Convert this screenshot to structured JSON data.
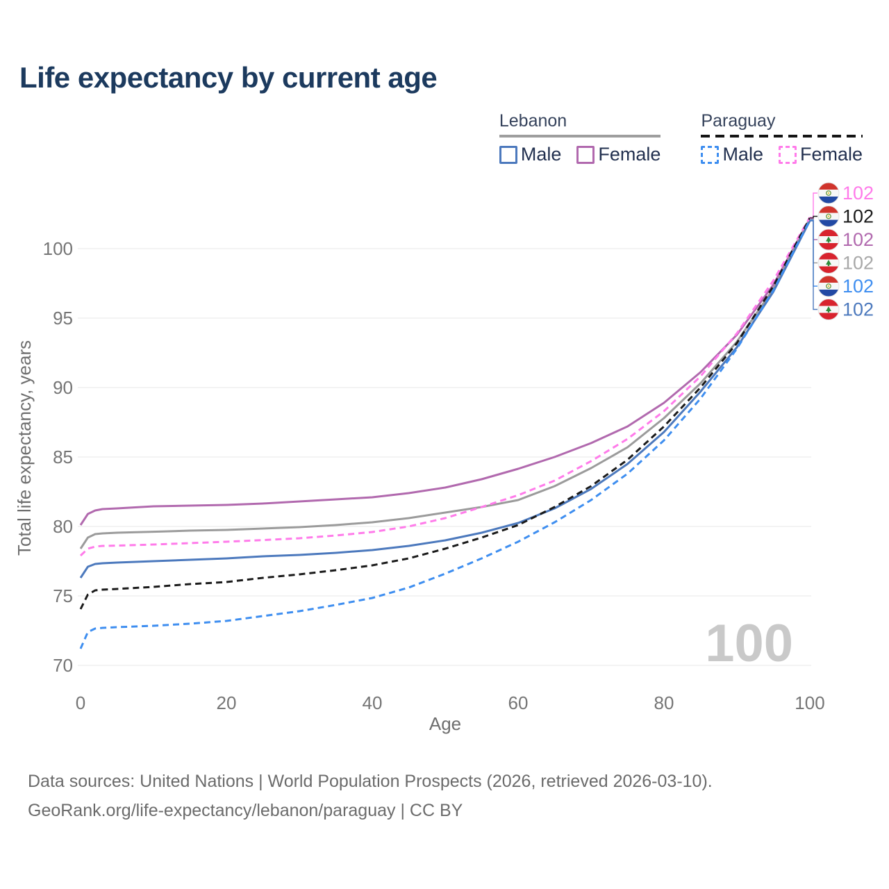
{
  "title": "Life expectancy by current age",
  "legend": {
    "groups": [
      {
        "country": "Lebanon",
        "line_style": "solid",
        "underline_color": "#9e9e9e",
        "entries": [
          {
            "label": "Male",
            "color": "#4c79bd"
          },
          {
            "label": "Female",
            "color": "#b169ae"
          }
        ]
      },
      {
        "country": "Paraguay",
        "line_style": "dashed",
        "underline_color": "#141414",
        "entries": [
          {
            "label": "Male",
            "color": "#3e8ef0"
          },
          {
            "label": "Female",
            "color": "#ff7bea"
          }
        ]
      }
    ]
  },
  "chart_data": {
    "type": "line",
    "title": "Life expectancy by current age",
    "xlabel": "Age",
    "ylabel": "Total life expectancy, years",
    "x_ticks": [
      0,
      20,
      40,
      60,
      80,
      100
    ],
    "y_ticks": [
      70,
      75,
      80,
      85,
      90,
      95,
      100
    ],
    "xlim": [
      0,
      100
    ],
    "ylim": [
      69.5,
      103
    ],
    "grid": "horizontal-only",
    "legend_position": "top-right",
    "age_watermark": "100",
    "series": [
      {
        "name": "Paraguay Female",
        "country": "paraguay",
        "sex": "female",
        "style": "dashed",
        "color": "#ff7bea",
        "label_color": "#ff7bea",
        "end_label": "102",
        "points": [
          [
            0,
            77.9
          ],
          [
            1,
            78.4
          ],
          [
            2,
            78.55
          ],
          [
            3,
            78.6
          ],
          [
            5,
            78.62
          ],
          [
            10,
            78.7
          ],
          [
            15,
            78.8
          ],
          [
            20,
            78.9
          ],
          [
            25,
            79.02
          ],
          [
            30,
            79.15
          ],
          [
            35,
            79.35
          ],
          [
            40,
            79.6
          ],
          [
            45,
            80.0
          ],
          [
            50,
            80.6
          ],
          [
            55,
            81.4
          ],
          [
            60,
            82.25
          ],
          [
            65,
            83.3
          ],
          [
            70,
            84.7
          ],
          [
            75,
            86.3
          ],
          [
            80,
            88.3
          ],
          [
            85,
            90.8
          ],
          [
            90,
            93.9
          ],
          [
            95,
            97.7
          ],
          [
            100,
            102.25
          ]
        ]
      },
      {
        "name": "Paraguay",
        "country": "paraguay",
        "sex": "both",
        "style": "dashed",
        "color": "#1a1a1a",
        "label_color": "#1a1a1a",
        "end_label": "102",
        "points": [
          [
            0,
            74.05
          ],
          [
            1,
            75.1
          ],
          [
            2,
            75.4
          ],
          [
            3,
            75.45
          ],
          [
            5,
            75.5
          ],
          [
            10,
            75.65
          ],
          [
            15,
            75.85
          ],
          [
            20,
            76.0
          ],
          [
            25,
            76.3
          ],
          [
            30,
            76.55
          ],
          [
            35,
            76.85
          ],
          [
            40,
            77.2
          ],
          [
            45,
            77.7
          ],
          [
            50,
            78.4
          ],
          [
            55,
            79.2
          ],
          [
            60,
            80.1
          ],
          [
            65,
            81.4
          ],
          [
            70,
            82.9
          ],
          [
            75,
            84.8
          ],
          [
            80,
            87.2
          ],
          [
            85,
            90.0
          ],
          [
            90,
            93.2
          ],
          [
            95,
            97.3
          ],
          [
            100,
            102.2
          ]
        ]
      },
      {
        "name": "Lebanon Female",
        "country": "lebanon",
        "sex": "female",
        "style": "solid",
        "color": "#b169ae",
        "label_color": "#b169ae",
        "end_label": "102",
        "points": [
          [
            0,
            80.1
          ],
          [
            1,
            80.9
          ],
          [
            2,
            81.15
          ],
          [
            3,
            81.25
          ],
          [
            5,
            81.3
          ],
          [
            10,
            81.45
          ],
          [
            15,
            81.5
          ],
          [
            20,
            81.55
          ],
          [
            25,
            81.65
          ],
          [
            30,
            81.8
          ],
          [
            35,
            81.95
          ],
          [
            40,
            82.1
          ],
          [
            45,
            82.4
          ],
          [
            50,
            82.8
          ],
          [
            55,
            83.4
          ],
          [
            60,
            84.15
          ],
          [
            65,
            85.0
          ],
          [
            70,
            86.0
          ],
          [
            75,
            87.2
          ],
          [
            80,
            88.9
          ],
          [
            85,
            91.1
          ],
          [
            90,
            93.8
          ],
          [
            95,
            97.4
          ],
          [
            100,
            102.15
          ]
        ]
      },
      {
        "name": "Lebanon",
        "country": "lebanon",
        "sex": "both",
        "style": "solid",
        "color": "#9b9b9b",
        "label_color": "#a8a8a8",
        "end_label": "102",
        "points": [
          [
            0,
            78.4
          ],
          [
            1,
            79.2
          ],
          [
            2,
            79.45
          ],
          [
            3,
            79.5
          ],
          [
            5,
            79.55
          ],
          [
            10,
            79.62
          ],
          [
            15,
            79.7
          ],
          [
            20,
            79.75
          ],
          [
            25,
            79.85
          ],
          [
            30,
            79.95
          ],
          [
            35,
            80.1
          ],
          [
            40,
            80.3
          ],
          [
            45,
            80.6
          ],
          [
            50,
            81.0
          ],
          [
            55,
            81.4
          ],
          [
            60,
            81.9
          ],
          [
            65,
            82.9
          ],
          [
            70,
            84.2
          ],
          [
            75,
            85.7
          ],
          [
            80,
            87.8
          ],
          [
            85,
            90.3
          ],
          [
            90,
            93.3
          ],
          [
            95,
            97.1
          ],
          [
            100,
            102.1
          ]
        ]
      },
      {
        "name": "Paraguay Male",
        "country": "paraguay",
        "sex": "male",
        "style": "dashed",
        "color": "#3e8ef0",
        "label_color": "#3e8ef0",
        "end_label": "102",
        "points": [
          [
            0,
            71.2
          ],
          [
            1,
            72.4
          ],
          [
            2,
            72.65
          ],
          [
            3,
            72.7
          ],
          [
            5,
            72.75
          ],
          [
            10,
            72.85
          ],
          [
            15,
            73.0
          ],
          [
            20,
            73.2
          ],
          [
            25,
            73.55
          ],
          [
            30,
            73.9
          ],
          [
            35,
            74.35
          ],
          [
            40,
            74.85
          ],
          [
            45,
            75.6
          ],
          [
            50,
            76.6
          ],
          [
            55,
            77.7
          ],
          [
            60,
            78.9
          ],
          [
            65,
            80.3
          ],
          [
            70,
            81.9
          ],
          [
            75,
            83.8
          ],
          [
            80,
            86.2
          ],
          [
            85,
            89.2
          ],
          [
            90,
            92.8
          ],
          [
            95,
            97.0
          ],
          [
            100,
            102.05
          ]
        ]
      },
      {
        "name": "Lebanon Male",
        "country": "lebanon",
        "sex": "male",
        "style": "solid",
        "color": "#4c79bd",
        "label_color": "#4c79bd",
        "end_label": "102",
        "points": [
          [
            0,
            76.3
          ],
          [
            1,
            77.1
          ],
          [
            2,
            77.3
          ],
          [
            3,
            77.35
          ],
          [
            5,
            77.4
          ],
          [
            10,
            77.5
          ],
          [
            15,
            77.6
          ],
          [
            20,
            77.7
          ],
          [
            25,
            77.85
          ],
          [
            30,
            77.95
          ],
          [
            35,
            78.1
          ],
          [
            40,
            78.3
          ],
          [
            45,
            78.6
          ],
          [
            50,
            79.0
          ],
          [
            55,
            79.55
          ],
          [
            60,
            80.25
          ],
          [
            65,
            81.3
          ],
          [
            70,
            82.7
          ],
          [
            75,
            84.5
          ],
          [
            80,
            86.8
          ],
          [
            85,
            89.7
          ],
          [
            90,
            92.9
          ],
          [
            95,
            96.9
          ],
          [
            100,
            102.0
          ]
        ]
      }
    ]
  },
  "footer": {
    "line1": "Data sources: United Nations | World Population Prospects (2026, retrieved 2026-03-10).",
    "line2": "GeoRank.org/life-expectancy/lebanon/paraguay | CC BY"
  },
  "colors": {
    "title": "#1c3a5e",
    "axis_text": "#757575",
    "gridline": "#ececec",
    "watermark": "#c9c9c9",
    "footer_text": "#6b6b6b",
    "lebanon_flag_red": "#d8232e",
    "lebanon_cedar_green": "#2e8b3a",
    "paraguay_flag_red": "#d0342c",
    "paraguay_flag_blue": "#2249a4"
  }
}
